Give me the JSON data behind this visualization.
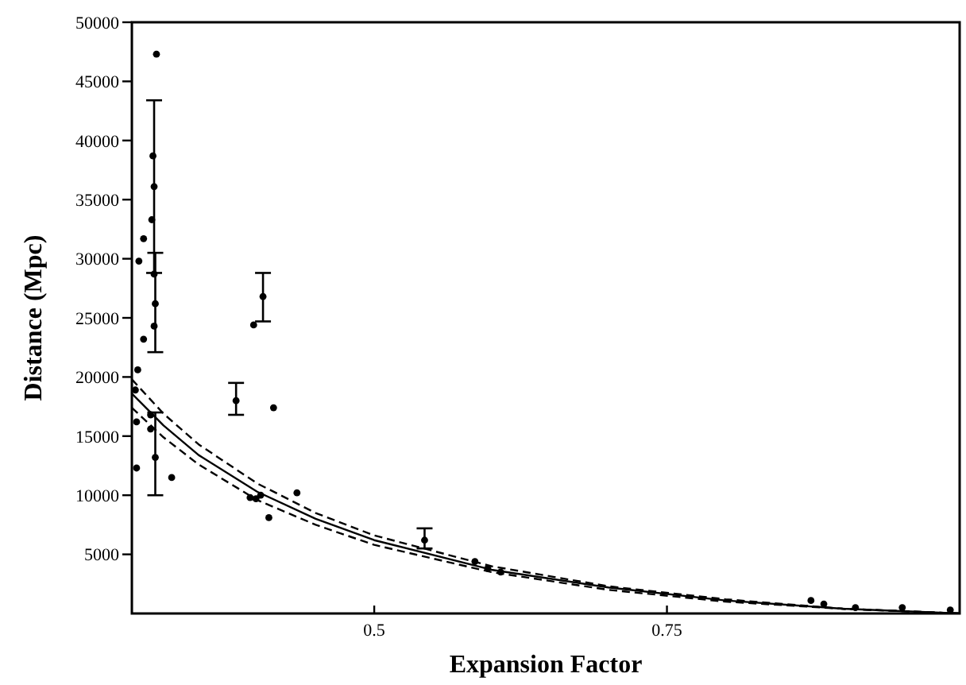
{
  "chart_data": {
    "type": "scatter",
    "xlabel": "Expansion Factor",
    "ylabel": "Distance (Mpc)",
    "xlim": [
      0.293,
      1.0
    ],
    "ylim": [
      0,
      50000
    ],
    "xticks": [
      0.5,
      0.75
    ],
    "yticks": [
      5000,
      10000,
      15000,
      20000,
      25000,
      30000,
      35000,
      40000,
      45000,
      50000
    ],
    "grid": false,
    "series": [
      {
        "color": "#000000",
        "marker": "circle",
        "x": [
          0.314,
          0.312,
          0.311,
          0.31,
          0.303,
          0.299,
          0.312,
          0.313,
          0.312,
          0.303,
          0.298,
          0.296,
          0.309,
          0.309,
          0.313,
          0.297,
          0.297,
          0.327,
          0.382,
          0.397,
          0.405,
          0.414,
          0.394,
          0.399,
          0.403,
          0.41,
          0.434,
          0.543,
          0.586,
          0.597,
          0.608,
          0.873,
          0.884,
          0.911,
          0.951,
          0.992
        ],
        "values": [
          47300,
          36100,
          38700,
          33300,
          31700,
          29800,
          28700,
          26200,
          24300,
          23200,
          20600,
          18900,
          16800,
          15600,
          13200,
          16200,
          12300,
          11500,
          18000,
          24400,
          26800,
          17400,
          9800,
          9700,
          10000,
          8100,
          10200,
          6200,
          4400,
          3800,
          3500,
          1100,
          800,
          500,
          500,
          300
        ],
        "errors": [
          null,
          7300,
          null,
          null,
          null,
          null,
          null,
          [
            22100,
            30500
          ],
          null,
          null,
          null,
          null,
          null,
          null,
          [
            10000,
            17000
          ],
          null,
          null,
          null,
          [
            16800,
            19500
          ],
          null,
          [
            24700,
            28800
          ],
          null,
          null,
          null,
          null,
          null,
          null,
          [
            5500,
            7200
          ],
          null,
          null,
          null,
          null,
          null,
          null,
          null,
          null
        ]
      },
      {
        "type": "line",
        "color": "#000000",
        "line_style": "dashed",
        "x": [
          0.293,
          0.32,
          0.35,
          0.4,
          0.45,
          0.5,
          0.6,
          0.7,
          0.8,
          0.9,
          1.0
        ],
        "values": [
          19800,
          16900,
          14300,
          11000,
          8500,
          6600,
          4000,
          2300,
          1200,
          400,
          0
        ]
      },
      {
        "type": "line",
        "color": "#000000",
        "line_style": "solid",
        "x": [
          0.293,
          0.32,
          0.35,
          0.4,
          0.45,
          0.5,
          0.6,
          0.7,
          0.8,
          0.9,
          1.0
        ],
        "values": [
          18600,
          15900,
          13400,
          10300,
          8000,
          6200,
          3700,
          2200,
          1100,
          400,
          0
        ]
      },
      {
        "type": "line",
        "color": "#000000",
        "line_style": "dashed",
        "x": [
          0.293,
          0.32,
          0.35,
          0.4,
          0.45,
          0.5,
          0.6,
          0.7,
          0.8,
          0.9,
          1.0
        ],
        "values": [
          17400,
          14900,
          12600,
          9600,
          7500,
          5800,
          3500,
          2000,
          1000,
          400,
          0
        ]
      }
    ]
  }
}
